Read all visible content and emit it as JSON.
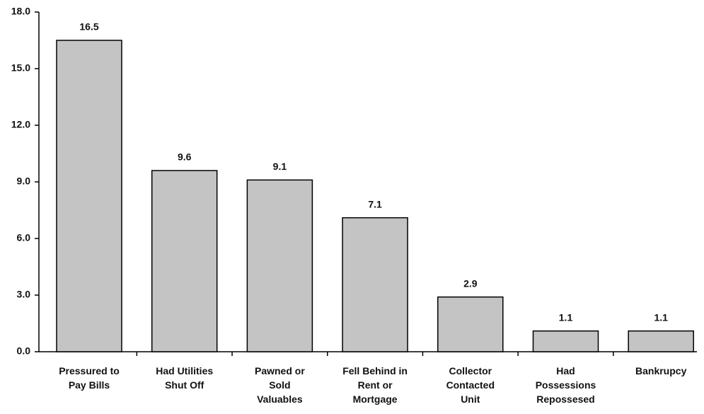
{
  "chart_data": {
    "type": "bar",
    "categories": [
      "Pressured to\nPay Bills",
      "Had Utilities\nShut Off",
      "Pawned or\nSold\nValuables",
      "Fell Behind in\nRent or\nMortgage",
      "Collector\nContacted\nUnit",
      "Had\nPossessions\nRepossesed",
      "Bankrupcy"
    ],
    "values": [
      16.5,
      9.6,
      9.1,
      7.1,
      2.9,
      1.1,
      1.1
    ],
    "color": "#c4c4c4",
    "ylim": [
      0,
      18
    ],
    "yticks": [
      {
        "value": 0,
        "label": "0.0"
      },
      {
        "value": 3,
        "label": "3.0"
      },
      {
        "value": 6,
        "label": "6.0"
      },
      {
        "value": 9,
        "label": "9.0"
      },
      {
        "value": 12,
        "label": "12.0"
      },
      {
        "value": 15,
        "label": "15.0"
      },
      {
        "value": 18,
        "label": "18.0"
      }
    ],
    "grid": false
  }
}
